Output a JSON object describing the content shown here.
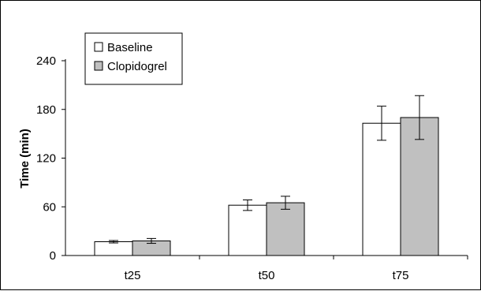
{
  "chart_data": {
    "type": "bar",
    "title": "",
    "xlabel": "",
    "ylabel": "Time (min)",
    "categories": [
      "t25",
      "t50",
      "t75"
    ],
    "ylim": [
      0,
      240
    ],
    "yticks": [
      0,
      60,
      120,
      180,
      240
    ],
    "grid": false,
    "legend_position": "top-left",
    "series": [
      {
        "name": "Baseline",
        "color": "#ffffff",
        "values": [
          17,
          62,
          163
        ],
        "errors": [
          1.5,
          6.5,
          21
        ]
      },
      {
        "name": "Clopidogrel",
        "color": "#c0c0c0",
        "values": [
          18,
          65,
          170
        ],
        "errors": [
          3,
          8,
          27
        ]
      }
    ]
  }
}
